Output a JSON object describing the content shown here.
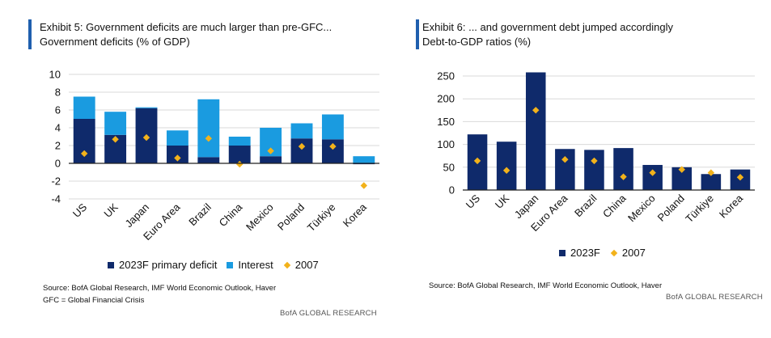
{
  "colors": {
    "primary": "#0f2a6b",
    "interest": "#1a9be0",
    "marker": "#f2b21b",
    "accent_bar": "#1f5fae",
    "grid": "#d9d9d9"
  },
  "left": {
    "title_line1": "Exhibit 5: Government deficits are much larger than pre-GFC...",
    "title_line2": "Government deficits (% of GDP)",
    "legend": [
      "2023F primary deficit",
      "Interest",
      "2007"
    ],
    "source_line1": "Source: BofA Global Research, IMF World Economic Outlook, Haver",
    "source_line2": "GFC = Global Financial Crisis",
    "brand": "BofA GLOBAL RESEARCH"
  },
  "right": {
    "title_line1": "Exhibit 6: ... and government debt jumped accordingly",
    "title_line2": "Debt-to-GDP ratios (%)",
    "legend": [
      "2023F",
      "2007"
    ],
    "source_line1": "Source: BofA Global Research, IMF World Economic Outlook, Haver",
    "brand": "BofA GLOBAL RESEARCH"
  },
  "chart_data": [
    {
      "type": "bar",
      "stacked": true,
      "title": "Government deficits (% of GDP)",
      "categories": [
        "US",
        "UK",
        "Japan",
        "Euro Area",
        "Brazil",
        "China",
        "Mexico",
        "Poland",
        "Türkiye",
        "Korea"
      ],
      "series": [
        {
          "name": "2023F primary deficit",
          "kind": "bar",
          "color": "#0f2a6b",
          "values": [
            5.0,
            3.2,
            6.2,
            2.0,
            0.7,
            2.0,
            0.8,
            2.8,
            2.7,
            -0.1
          ]
        },
        {
          "name": "Interest",
          "kind": "bar",
          "color": "#1a9be0",
          "values": [
            2.5,
            2.6,
            0.1,
            1.7,
            6.5,
            1.0,
            3.2,
            1.7,
            2.8,
            0.8
          ]
        },
        {
          "name": "2007",
          "kind": "marker",
          "color": "#f2b21b",
          "values": [
            1.1,
            2.7,
            2.9,
            0.6,
            2.8,
            -0.1,
            1.4,
            1.9,
            1.9,
            -2.5
          ]
        }
      ],
      "ylim": [
        -4,
        10
      ],
      "yticks": [
        -4,
        -2,
        0,
        2,
        4,
        6,
        8,
        10
      ],
      "grid": true,
      "legend_position": "bottom"
    },
    {
      "type": "bar",
      "title": "Debt-to-GDP ratios (%)",
      "categories": [
        "US",
        "UK",
        "Japan",
        "Euro Area",
        "Brazil",
        "China",
        "Mexico",
        "Poland",
        "Türkiye",
        "Korea"
      ],
      "series": [
        {
          "name": "2023F",
          "kind": "bar",
          "color": "#0f2a6b",
          "values": [
            122,
            106,
            258,
            90,
            88,
            92,
            55,
            50,
            35,
            45
          ]
        },
        {
          "name": "2007",
          "kind": "marker",
          "color": "#f2b21b",
          "values": [
            64,
            43,
            175,
            67,
            64,
            29,
            38,
            45,
            38,
            28
          ]
        }
      ],
      "ylim": [
        0,
        250
      ],
      "yticks": [
        0,
        50,
        100,
        150,
        200,
        250
      ],
      "grid": true,
      "legend_position": "bottom"
    }
  ]
}
